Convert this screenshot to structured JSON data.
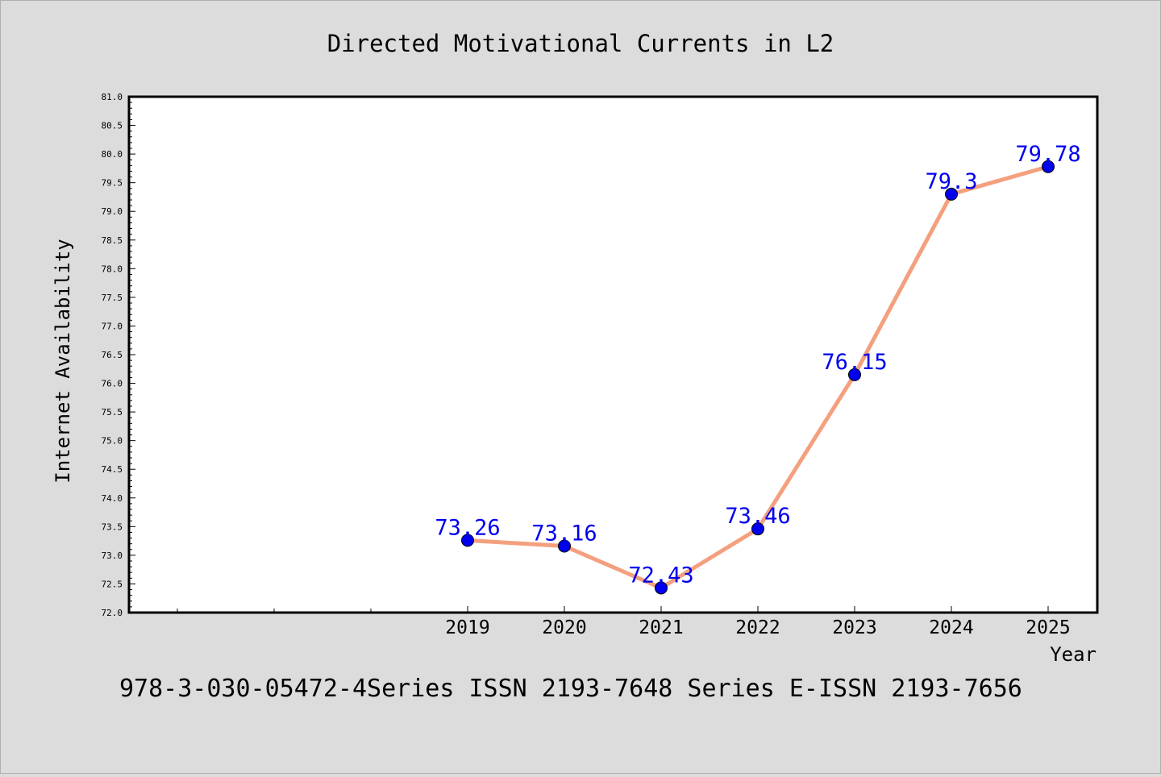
{
  "chart_data": {
    "type": "line",
    "title": "Directed Motivational Currents in L2",
    "xlabel": "Year",
    "ylabel": "Internet Availability",
    "footer": "978-3-030-05472-4Series ISSN 2193-7648 Series E-ISSN 2193-7656",
    "categories": [
      "2019",
      "2020",
      "2021",
      "2022",
      "2023",
      "2024",
      "2025"
    ],
    "series": [
      {
        "values": [
          73.26,
          73.16,
          72.43,
          73.46,
          76.15,
          79.3,
          79.78
        ],
        "labels": [
          "73.26",
          "73.16",
          "72.43",
          "73.46",
          "76.15",
          "79.3",
          "79.78"
        ]
      }
    ],
    "ylim": [
      72.0,
      81.0
    ],
    "yticks": [
      "72.0",
      "72.5",
      "73.0",
      "73.5",
      "74.0",
      "74.5",
      "75.0",
      "75.5",
      "76.0",
      "76.5",
      "77.0",
      "77.5",
      "78.0",
      "78.5",
      "79.0",
      "79.5",
      "80.0",
      "80.5",
      "81.0"
    ],
    "grid": false,
    "legend": "none",
    "colors": {
      "line": "#f4a07e",
      "marker": "#0000ee",
      "label": "#0000ee",
      "background": "#dcdcdc",
      "plot_background": "#ffffff"
    }
  }
}
